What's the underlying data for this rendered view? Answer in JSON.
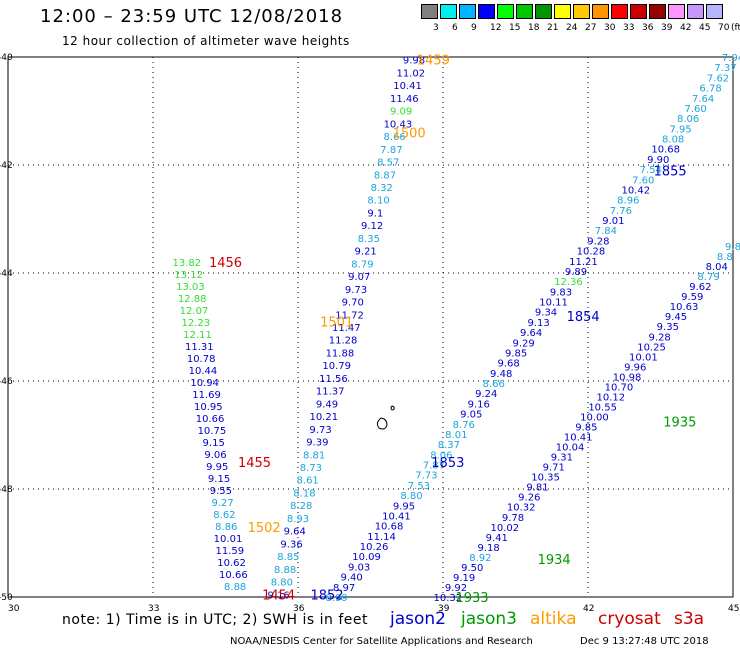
{
  "header": {
    "title": "12:00 – 23:59 UTC 12/08/2018",
    "subtitle": "12 hour collection of altimeter wave heights"
  },
  "scale": {
    "labels": [
      "3",
      "6",
      "9",
      "12",
      "15",
      "18",
      "21",
      "24",
      "27",
      "30",
      "33",
      "36",
      "39",
      "42",
      "45",
      "70",
      "(ft)"
    ],
    "colors": [
      "#808080",
      "#00f0f0",
      "#00b4ff",
      "#0000ff",
      "#00ff00",
      "#00c800",
      "#009600",
      "#ffff00",
      "#ffc800",
      "#ff9600",
      "#ff0000",
      "#c80000",
      "#960000",
      "#ff96ff",
      "#c896ff",
      "#b4b4ff"
    ]
  },
  "axes": {
    "x_ticks": [
      "30",
      "33",
      "36",
      "39",
      "42",
      "45"
    ],
    "y_ticks": [
      "-40",
      "-42",
      "-44",
      "-46",
      "-48",
      "-50"
    ]
  },
  "colors": {
    "jason2": "#0000cc",
    "jason3": "#009900",
    "altika": "#ff9900",
    "cryosat": "#cc0000",
    "s3a": "#cc0000",
    "light_blue": "#1ba5dc",
    "light_green": "#33dd33"
  },
  "passes": [
    {
      "lon0": 35.6,
      "lat0": -49.95,
      "lon1": 38.4,
      "lat1": -40.05,
      "values": [
        "9.16",
        "8.80",
        "8.88",
        "8.85",
        "9.36",
        "9.64",
        "8.93",
        "8.28",
        "8.18",
        "8.61",
        "8.73",
        "8.81",
        "9.39",
        "9.73",
        "10.21",
        "9.49",
        "11.37",
        "11.56",
        "10.79",
        "11.88",
        "11.28",
        "11.47",
        "11.72",
        "9.70",
        "9.73",
        "9.07",
        "8.79",
        "9.21",
        "8.35",
        "9.12",
        "9.1",
        "8.10",
        "8.32",
        "8.87",
        "8.57",
        "7.87",
        "8.66",
        "10.43",
        "9.09",
        "11.46",
        "10.41",
        "11.02",
        "9.98"
      ],
      "colors": [
        "jason2",
        "light_blue",
        "light_blue",
        "light_blue",
        "jason2",
        "jason2",
        "light_blue",
        "light_blue",
        "light_blue",
        "light_blue",
        "light_blue",
        "light_blue",
        "jason2",
        "jason2",
        "jason2",
        "jason2",
        "jason2",
        "jason2",
        "jason2",
        "jason2",
        "jason2",
        "jason2",
        "jason2",
        "jason2",
        "jason2",
        "jason2",
        "light_blue",
        "jason2",
        "light_blue",
        "jason2",
        "jason2",
        "light_blue",
        "light_blue",
        "light_blue",
        "light_blue",
        "light_blue",
        "light_blue",
        "jason2",
        "light_green",
        "jason2",
        "jason2",
        "jason2",
        "jason2"
      ]
    },
    {
      "lon0": 33.7,
      "lat0": -43.8,
      "lon1": 34.7,
      "lat1": -49.8,
      "values": [
        "13.82",
        "13.12",
        "13.03",
        "12.88",
        "12.07",
        "12.23",
        "12.11",
        "11.31",
        "10.78",
        "10.44",
        "10.94",
        "11.69",
        "10.95",
        "10.66",
        "10.75",
        "9.15",
        "9.06",
        "9.95",
        "9.15",
        "9.55",
        "9.27",
        "8.62",
        "8.86",
        "10.01",
        "11.59",
        "10.62",
        "10.66",
        "8.88"
      ],
      "colors": [
        "light_green",
        "light_green",
        "light_green",
        "light_green",
        "light_green",
        "light_green",
        "light_green",
        "jason2",
        "jason2",
        "jason2",
        "jason2",
        "jason2",
        "jason2",
        "jason2",
        "jason2",
        "jason2",
        "jason2",
        "jason2",
        "jason2",
        "jason2",
        "light_blue",
        "light_blue",
        "light_blue",
        "jason2",
        "jason2",
        "jason2",
        "jason2",
        "light_blue"
      ]
    },
    {
      "lon0": 45.0,
      "lat0": -40.0,
      "lon1": 36.8,
      "lat1": -50.0,
      "values": [
        "7.94",
        "7.37",
        "7.62",
        "6.78",
        "7.64",
        "7.60",
        "8.06",
        "7.95",
        "8.08",
        "10.68",
        "9.90",
        "7.54",
        "7.60",
        "10.42",
        "8.96",
        "7.76",
        "9.01",
        "7.84",
        "9.28",
        "10.28",
        "11.21",
        "9.89",
        "12.36",
        "9.83",
        "10.11",
        "9.34",
        "9.13",
        "9.64",
        "9.29",
        "9.85",
        "9.68",
        "9.48",
        "8.66",
        "9.24",
        "9.16",
        "9.05",
        "8.76",
        "8.01",
        "8.37",
        "8.06",
        "7.87",
        "7.73",
        "7.53",
        "8.80",
        "9.95",
        "10.41",
        "10.68",
        "11.14",
        "10.26",
        "10.09",
        "9.03",
        "9.40",
        "8.97",
        "8.99"
      ],
      "colors": [
        "light_blue",
        "light_blue",
        "light_blue",
        "light_blue",
        "light_blue",
        "light_blue",
        "light_blue",
        "light_blue",
        "light_blue",
        "jason2",
        "jason2",
        "light_blue",
        "light_blue",
        "jason2",
        "light_blue",
        "light_blue",
        "jason2",
        "light_blue",
        "jason2",
        "jason2",
        "jason2",
        "jason2",
        "light_green",
        "jason2",
        "jason2",
        "jason2",
        "jason2",
        "jason2",
        "jason2",
        "jason2",
        "jason2",
        "jason2",
        "light_blue",
        "jason2",
        "jason2",
        "jason2",
        "light_blue",
        "light_blue",
        "light_blue",
        "light_blue",
        "light_blue",
        "light_blue",
        "light_blue",
        "light_blue",
        "jason2",
        "jason2",
        "jason2",
        "jason2",
        "jason2",
        "jason2",
        "jason2",
        "jason2",
        "jason2",
        "light_blue"
      ]
    },
    {
      "lon0": 45.0,
      "lat0": -43.5,
      "lon1": 39.1,
      "lat1": -50.0,
      "values": [
        "9.8",
        "8.8",
        "8.04",
        "8.79",
        "9.62",
        "9.59",
        "10.63",
        "9.45",
        "9.35",
        "9.28",
        "10.25",
        "10.01",
        "9.96",
        "10.98",
        "10.70",
        "10.12",
        "10.55",
        "10.00",
        "9.85",
        "10.41",
        "10.04",
        "9.31",
        "9.71",
        "10.35",
        "9.81",
        "9.26",
        "10.32",
        "9.78",
        "10.02",
        "9.41",
        "9.18",
        "8.92",
        "9.50",
        "9.19",
        "9.92",
        "10.32"
      ],
      "colors": [
        "light_blue",
        "light_blue",
        "jason2",
        "light_blue",
        "jason2",
        "jason2",
        "jason2",
        "jason2",
        "jason2",
        "jason2",
        "jason2",
        "jason2",
        "jason2",
        "jason2",
        "jason2",
        "jason2",
        "jason2",
        "jason2",
        "jason2",
        "jason2",
        "jason2",
        "jason2",
        "jason2",
        "jason2",
        "jason2",
        "jason2",
        "jason2",
        "jason2",
        "jason2",
        "jason2",
        "jason2",
        "light_blue",
        "jason2",
        "jason2",
        "jason2",
        "jason2"
      ]
    }
  ],
  "time_labels": [
    {
      "text": "1459",
      "color": "altika",
      "lon": 38.8,
      "lat": -40.05
    },
    {
      "text": "1500",
      "color": "altika",
      "lon": 38.3,
      "lat": -41.4
    },
    {
      "text": "1456",
      "color": "cryosat",
      "lon": 34.5,
      "lat": -43.8
    },
    {
      "text": "1501",
      "color": "altika",
      "lon": 36.8,
      "lat": -44.9
    },
    {
      "text": "1455",
      "color": "cryosat",
      "lon": 35.1,
      "lat": -47.5
    },
    {
      "text": "1502",
      "color": "altika",
      "lon": 35.3,
      "lat": -48.7
    },
    {
      "text": "1454",
      "color": "cryosat",
      "lon": 35.6,
      "lat": -49.95
    },
    {
      "text": "1852",
      "color": "jason2",
      "lon": 36.6,
      "lat": -49.95
    },
    {
      "text": "1853",
      "color": "jason2",
      "lon": 39.1,
      "lat": -47.5
    },
    {
      "text": "1854",
      "color": "jason2",
      "lon": 41.9,
      "lat": -44.8
    },
    {
      "text": "1855",
      "color": "jason2",
      "lon": 43.7,
      "lat": -42.1
    },
    {
      "text": "1935",
      "color": "jason3",
      "lon": 43.9,
      "lat": -46.75
    },
    {
      "text": "1934",
      "color": "jason3",
      "lon": 41.3,
      "lat": -49.3
    },
    {
      "text": "1933",
      "color": "jason3",
      "lon": 39.6,
      "lat": -50.0
    }
  ],
  "footer": {
    "note": "note: 1) Time is in UTC; 2) SWH is in feet",
    "satellites": [
      {
        "name": "jason2",
        "color": "#0000cc"
      },
      {
        "name": "jason3",
        "color": "#009900"
      },
      {
        "name": "altika",
        "color": "#ff9900"
      },
      {
        "name": "cryosat",
        "color": "#cc0000"
      },
      {
        "name": "s3a",
        "color": "#cc0000"
      }
    ],
    "center": "NOAA/NESDIS Center for Satellite Applications and Research",
    "date": "Dec  9 13:27:48 UTC 2018"
  }
}
